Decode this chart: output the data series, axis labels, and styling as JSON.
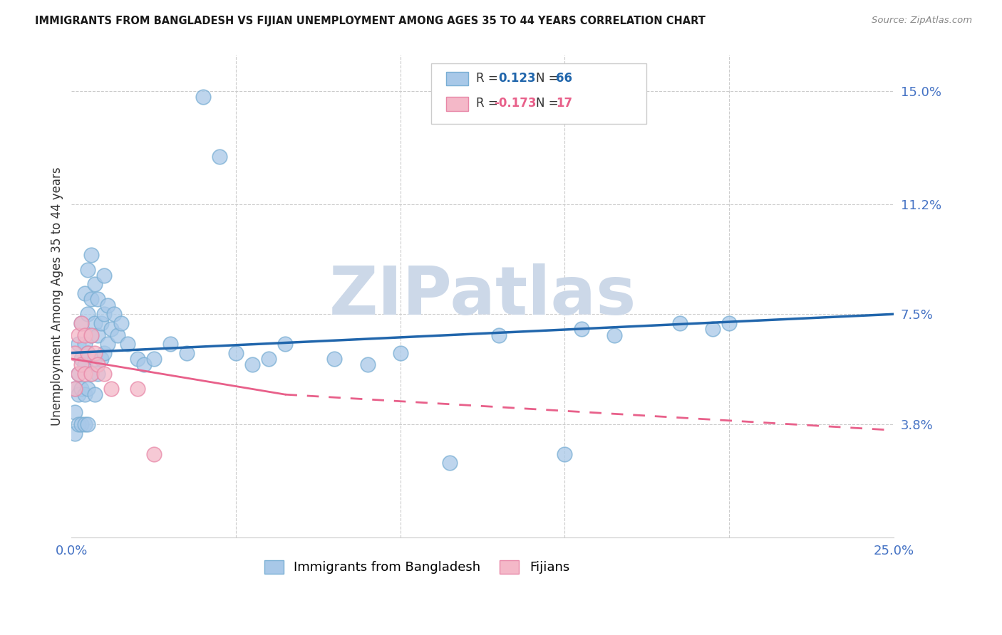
{
  "title": "IMMIGRANTS FROM BANGLADESH VS FIJIAN UNEMPLOYMENT AMONG AGES 35 TO 44 YEARS CORRELATION CHART",
  "source": "Source: ZipAtlas.com",
  "ylabel": "Unemployment Among Ages 35 to 44 years",
  "xlim": [
    0.0,
    0.25
  ],
  "ylim": [
    0.0,
    0.162
  ],
  "yticks": [
    0.038,
    0.075,
    0.112,
    0.15
  ],
  "ytick_labels": [
    "3.8%",
    "7.5%",
    "11.2%",
    "15.0%"
  ],
  "xticks": [
    0.0,
    0.05,
    0.1,
    0.15,
    0.2,
    0.25
  ],
  "xtick_labels": [
    "0.0%",
    "",
    "",
    "",
    "",
    "25.0%"
  ],
  "color_blue": "#a8c8e8",
  "color_pink": "#f4b8c8",
  "edge_blue": "#7aafd4",
  "edge_pink": "#e888a8",
  "color_trend_blue": "#2166ac",
  "color_trend_pink": "#e8608a",
  "watermark": "ZIPatlas",
  "watermark_color": "#ccd8e8",
  "bd_trend_x0": 0.0,
  "bd_trend_y0": 0.062,
  "bd_trend_x1": 0.25,
  "bd_trend_y1": 0.075,
  "fj_trend_x0": 0.0,
  "fj_trend_y0": 0.06,
  "fj_trend_x_break": 0.065,
  "fj_trend_y_break": 0.048,
  "fj_trend_x1": 0.25,
  "fj_trend_y1": 0.036,
  "bangladesh_x": [
    0.001,
    0.001,
    0.001,
    0.002,
    0.002,
    0.002,
    0.002,
    0.003,
    0.003,
    0.003,
    0.003,
    0.004,
    0.004,
    0.004,
    0.004,
    0.004,
    0.005,
    0.005,
    0.005,
    0.005,
    0.005,
    0.006,
    0.006,
    0.006,
    0.006,
    0.007,
    0.007,
    0.007,
    0.007,
    0.008,
    0.008,
    0.008,
    0.009,
    0.009,
    0.01,
    0.01,
    0.01,
    0.011,
    0.011,
    0.012,
    0.013,
    0.014,
    0.015,
    0.017,
    0.02,
    0.022,
    0.025,
    0.03,
    0.035,
    0.04,
    0.045,
    0.05,
    0.055,
    0.06,
    0.065,
    0.08,
    0.09,
    0.1,
    0.115,
    0.13,
    0.15,
    0.155,
    0.165,
    0.185,
    0.195,
    0.2
  ],
  "bangladesh_y": [
    0.05,
    0.042,
    0.035,
    0.065,
    0.055,
    0.048,
    0.038,
    0.072,
    0.06,
    0.05,
    0.038,
    0.082,
    0.065,
    0.058,
    0.048,
    0.038,
    0.09,
    0.075,
    0.062,
    0.05,
    0.038,
    0.095,
    0.08,
    0.068,
    0.055,
    0.085,
    0.072,
    0.06,
    0.048,
    0.08,
    0.068,
    0.055,
    0.072,
    0.06,
    0.088,
    0.075,
    0.062,
    0.078,
    0.065,
    0.07,
    0.075,
    0.068,
    0.072,
    0.065,
    0.06,
    0.058,
    0.06,
    0.065,
    0.062,
    0.148,
    0.128,
    0.062,
    0.058,
    0.06,
    0.065,
    0.06,
    0.058,
    0.062,
    0.025,
    0.068,
    0.028,
    0.07,
    0.068,
    0.072,
    0.07,
    0.072
  ],
  "fijians_x": [
    0.001,
    0.001,
    0.002,
    0.002,
    0.003,
    0.003,
    0.004,
    0.004,
    0.005,
    0.006,
    0.006,
    0.007,
    0.008,
    0.01,
    0.012,
    0.02,
    0.025
  ],
  "fijians_y": [
    0.062,
    0.05,
    0.068,
    0.055,
    0.072,
    0.058,
    0.068,
    0.055,
    0.062,
    0.068,
    0.055,
    0.062,
    0.058,
    0.055,
    0.05,
    0.05,
    0.028
  ]
}
